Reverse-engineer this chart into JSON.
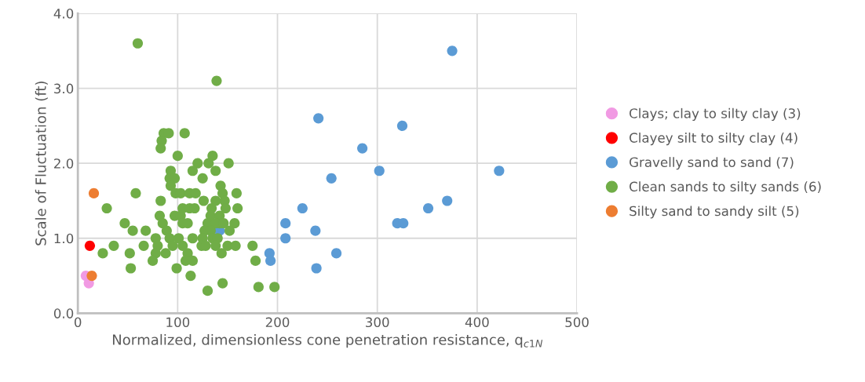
{
  "chart_data": {
    "type": "scatter",
    "xlabel": "Normalized, dimensionless cone penetration resistance, q$_{c1N}$",
    "ylabel": "Scale of Fluctuation (ft)",
    "xlim": [
      0,
      500
    ],
    "xticks": [
      0,
      100,
      200,
      300,
      400,
      500
    ],
    "ylim": [
      0,
      4.0
    ],
    "yticks": [
      {
        "value": 0,
        "label": "0.0"
      },
      {
        "value": 1,
        "label": "1.0"
      },
      {
        "value": 2,
        "label": "2.0"
      },
      {
        "value": 3,
        "label": "3.0"
      },
      {
        "value": 4,
        "label": "4.0"
      }
    ],
    "grid": true,
    "legend": "right",
    "marker": "circle",
    "series": [
      {
        "name": "Clays; clay to silty clay (3)",
        "color": "#f19ae3",
        "x": [
          8,
          11
        ],
        "values": [
          0.5,
          0.4
        ]
      },
      {
        "name": "Clayey silt to silty clay (4)",
        "color": "#ff0000",
        "x": [
          12
        ],
        "values": [
          0.9
        ]
      },
      {
        "name": "Gravelly sand to sand (7)",
        "color": "#5b9bd5",
        "x": [
          375,
          241,
          325,
          285,
          302,
          422,
          254,
          225,
          351,
          370,
          208,
          320,
          326,
          208,
          238,
          259,
          239,
          192,
          193,
          142
        ],
        "values": [
          3.5,
          2.6,
          2.5,
          2.2,
          1.9,
          1.9,
          1.8,
          1.4,
          1.4,
          1.5,
          1.2,
          1.2,
          1.2,
          1.0,
          1.1,
          0.8,
          0.6,
          0.8,
          0.7,
          1.1
        ]
      },
      {
        "name": "Clean sands to silty sands (6)",
        "color": "#70ad47",
        "x": [
          60,
          139,
          86,
          91,
          107,
          84,
          83,
          100,
          135,
          151,
          120,
          131,
          93,
          115,
          138,
          92,
          97,
          125,
          93,
          143,
          58,
          98,
          103,
          112,
          118,
          145,
          159,
          83,
          126,
          138,
          147,
          29,
          105,
          112,
          117,
          134,
          148,
          160,
          82,
          97,
          103,
          133,
          142,
          47,
          85,
          105,
          110,
          130,
          142,
          157,
          138,
          55,
          68,
          89,
          127,
          133,
          152,
          146,
          78,
          92,
          101,
          115,
          125,
          135,
          140,
          36,
          66,
          80,
          95,
          105,
          124,
          128,
          138,
          150,
          158,
          175,
          25,
          52,
          78,
          88,
          110,
          144,
          75,
          108,
          115,
          178,
          53,
          99,
          113,
          145,
          181,
          197,
          130
        ],
        "values": [
          3.6,
          3.1,
          2.4,
          2.4,
          2.4,
          2.3,
          2.2,
          2.1,
          2.1,
          2.0,
          2.0,
          2.0,
          1.9,
          1.9,
          1.9,
          1.8,
          1.8,
          1.8,
          1.7,
          1.7,
          1.6,
          1.6,
          1.6,
          1.6,
          1.6,
          1.6,
          1.6,
          1.5,
          1.5,
          1.5,
          1.5,
          1.4,
          1.4,
          1.4,
          1.4,
          1.4,
          1.4,
          1.4,
          1.3,
          1.3,
          1.3,
          1.3,
          1.3,
          1.2,
          1.2,
          1.2,
          1.2,
          1.2,
          1.2,
          1.2,
          1.2,
          1.1,
          1.1,
          1.1,
          1.1,
          1.1,
          1.1,
          1.2,
          1.0,
          1.0,
          1.0,
          1.0,
          1.0,
          1.0,
          1.0,
          0.9,
          0.9,
          0.9,
          0.9,
          0.9,
          0.9,
          0.9,
          0.9,
          0.9,
          0.9,
          0.9,
          0.8,
          0.8,
          0.8,
          0.8,
          0.8,
          0.8,
          0.7,
          0.7,
          0.7,
          0.7,
          0.6,
          0.6,
          0.5,
          0.4,
          0.35,
          0.35,
          0.3
        ]
      },
      {
        "name": "Silty sand to sandy silt (5)",
        "color": "#ed7d31",
        "x": [
          16,
          14
        ],
        "values": [
          1.6,
          0.5
        ]
      }
    ]
  }
}
